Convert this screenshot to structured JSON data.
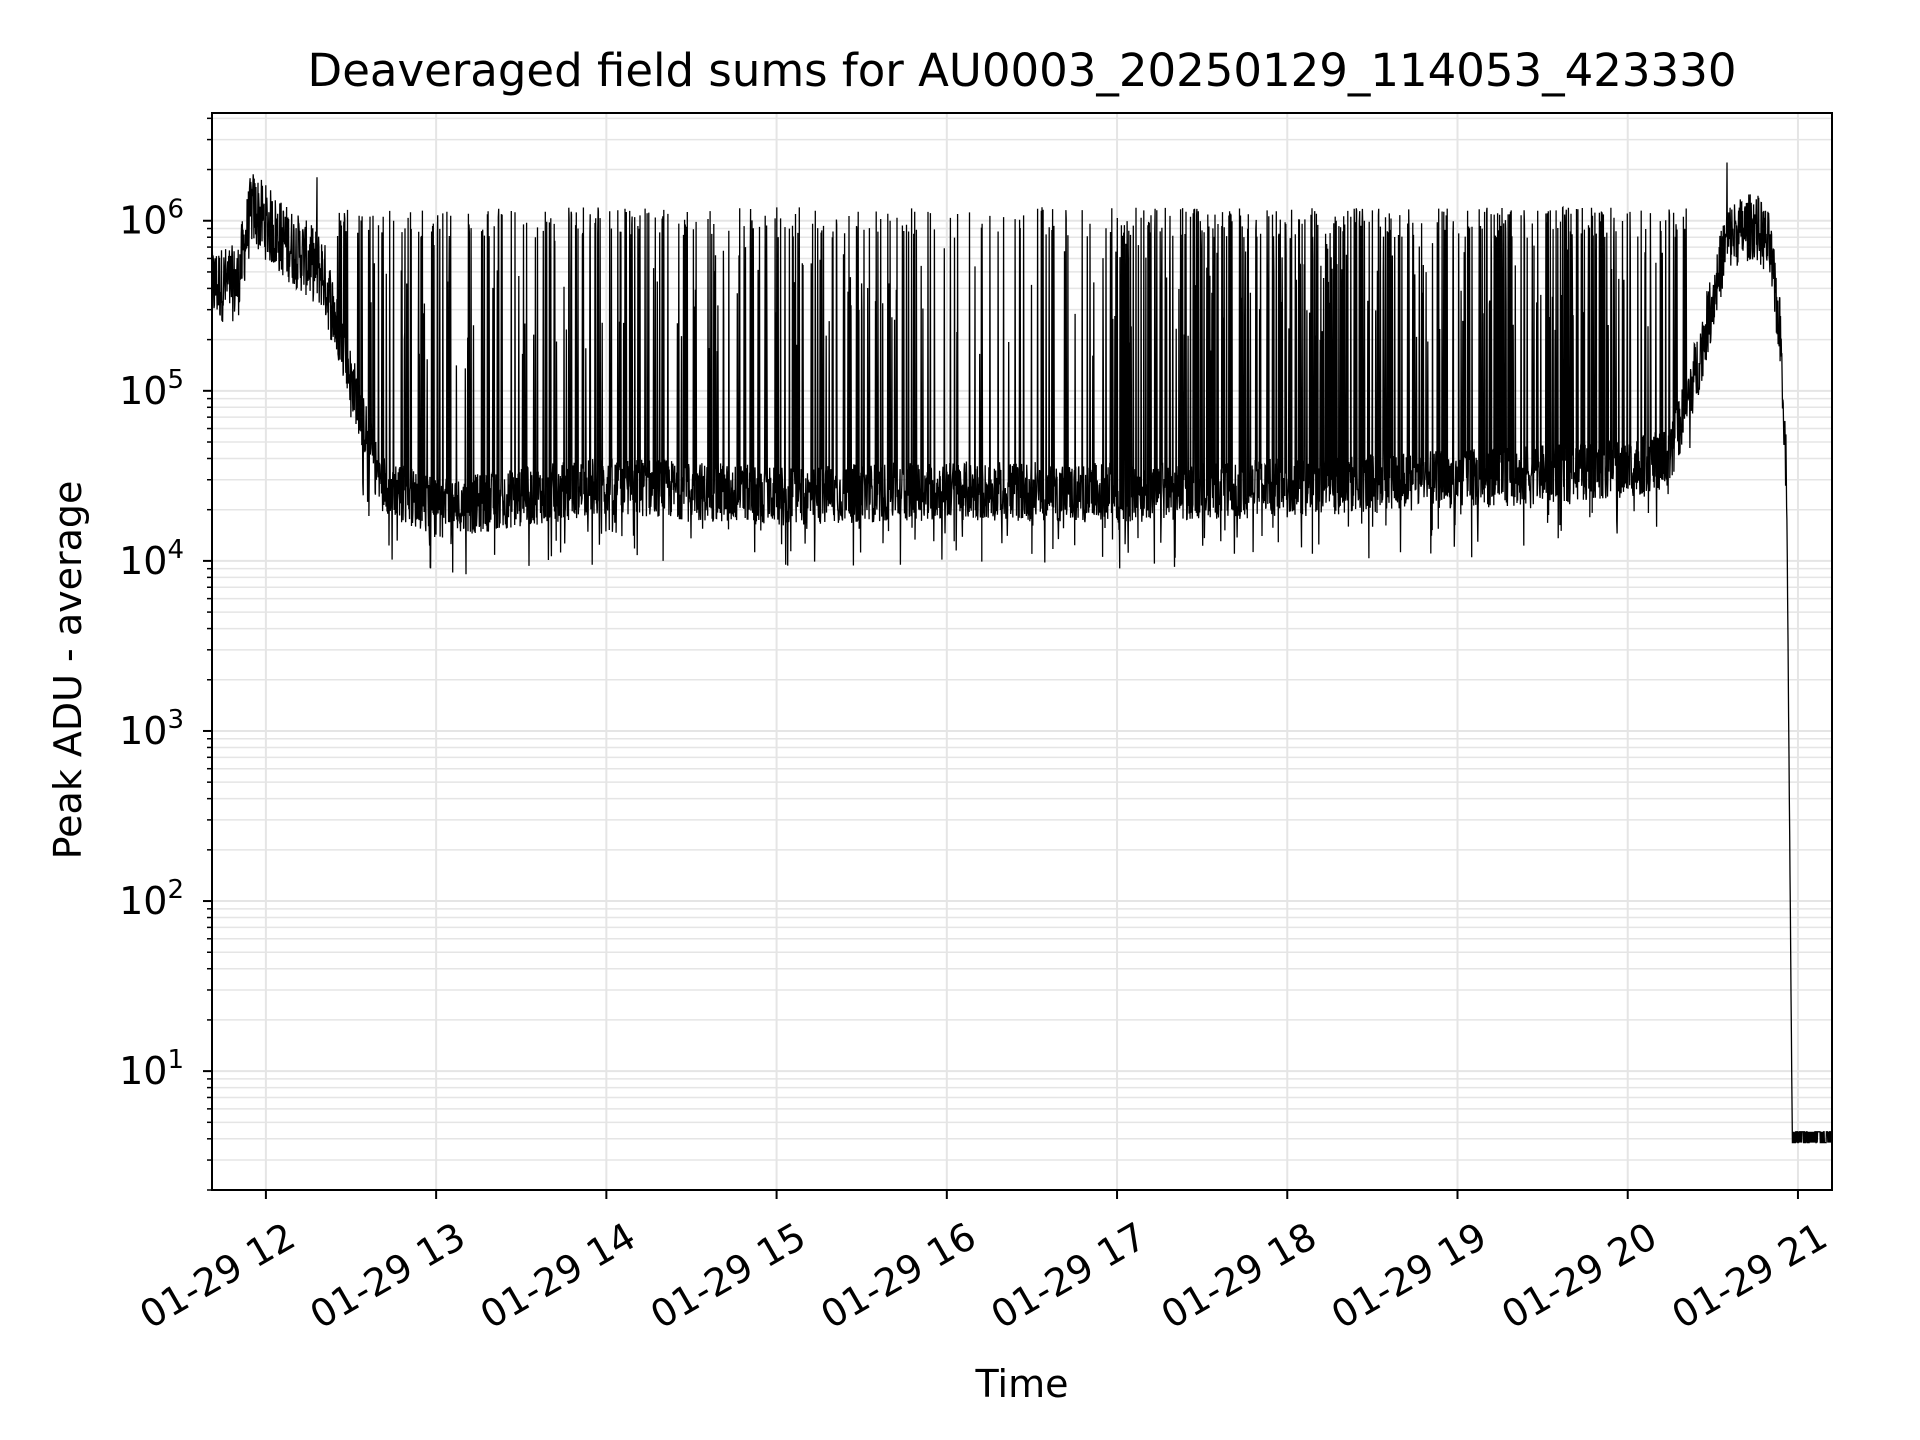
{
  "chart_data": {
    "type": "line",
    "title": "Deaveraged field sums for AU0003_20250129_114053_423330",
    "xlabel": "Time",
    "ylabel": "Peak ADU - average",
    "yscale": "log",
    "grid": "on (major and minor)",
    "legend": "none",
    "line_color": "#000000",
    "grid_color": "#e5e5e5",
    "xlim": [
      "2025-01-29 11:41",
      "2025-01-29 21:12"
    ],
    "ylim": [
      2,
      4300000
    ],
    "x_ticks": [
      {
        "label": "01-29 12",
        "time": "2025-01-29 12:00"
      },
      {
        "label": "01-29 13",
        "time": "2025-01-29 13:00"
      },
      {
        "label": "01-29 14",
        "time": "2025-01-29 14:00"
      },
      {
        "label": "01-29 15",
        "time": "2025-01-29 15:00"
      },
      {
        "label": "01-29 16",
        "time": "2025-01-29 16:00"
      },
      {
        "label": "01-29 17",
        "time": "2025-01-29 17:00"
      },
      {
        "label": "01-29 18",
        "time": "2025-01-29 18:00"
      },
      {
        "label": "01-29 19",
        "time": "2025-01-29 19:00"
      },
      {
        "label": "01-29 20",
        "time": "2025-01-29 20:00"
      },
      {
        "label": "01-29 21",
        "time": "2025-01-29 21:00"
      }
    ],
    "y_ticks": [
      {
        "base": "10",
        "exp": "1",
        "value": 10
      },
      {
        "base": "10",
        "exp": "2",
        "value": 100
      },
      {
        "base": "10",
        "exp": "3",
        "value": 1000
      },
      {
        "base": "10",
        "exp": "4",
        "value": 10000
      },
      {
        "base": "10",
        "exp": "5",
        "value": 100000
      },
      {
        "base": "10",
        "exp": "6",
        "value": 1000000
      }
    ],
    "series": [
      {
        "baseline": [
          {
            "x": "2025-01-29 11:41",
            "y": 420000
          },
          {
            "x": "2025-01-29 11:50",
            "y": 430000
          },
          {
            "x": "2025-01-29 11:55",
            "y": 1200000
          },
          {
            "x": "2025-01-29 12:05",
            "y": 800000
          },
          {
            "x": "2025-01-29 12:20",
            "y": 500000
          },
          {
            "x": "2025-01-29 12:30",
            "y": 120000
          },
          {
            "x": "2025-01-29 12:40",
            "y": 30000
          },
          {
            "x": "2025-01-29 13:00",
            "y": 20000
          },
          {
            "x": "2025-01-29 14:00",
            "y": 28000
          },
          {
            "x": "2025-01-29 15:00",
            "y": 24000
          },
          {
            "x": "2025-01-29 16:00",
            "y": 26000
          },
          {
            "x": "2025-01-29 17:00",
            "y": 25000
          },
          {
            "x": "2025-01-29 18:00",
            "y": 27000
          },
          {
            "x": "2025-01-29 19:00",
            "y": 30000
          },
          {
            "x": "2025-01-29 20:00",
            "y": 35000
          },
          {
            "x": "2025-01-29 20:15",
            "y": 40000
          },
          {
            "x": "2025-01-29 20:25",
            "y": 150000
          },
          {
            "x": "2025-01-29 20:35",
            "y": 800000
          },
          {
            "x": "2025-01-29 20:45",
            "y": 950000
          },
          {
            "x": "2025-01-29 20:50",
            "y": 700000
          },
          {
            "x": "2025-01-29 20:54",
            "y": 200000
          },
          {
            "x": "2025-01-29 20:56",
            "y": 30000
          },
          {
            "x": "2025-01-29 20:58",
            "y": 4
          },
          {
            "x": "2025-01-29 21:12",
            "y": 4
          }
        ],
        "spike_peaks": [
          {
            "x": "2025-01-29 12:18",
            "y": 1800000
          },
          {
            "x": "2025-01-29 12:45",
            "y": 1000000
          },
          {
            "x": "2025-01-29 13:35",
            "y": 800000
          },
          {
            "x": "2025-01-29 13:50",
            "y": 900000
          },
          {
            "x": "2025-01-29 14:10",
            "y": 1050000
          },
          {
            "x": "2025-01-29 15:40",
            "y": 1000000
          },
          {
            "x": "2025-01-29 16:20",
            "y": 1050000
          },
          {
            "x": "2025-01-29 17:40",
            "y": 1100000
          },
          {
            "x": "2025-01-29 18:30",
            "y": 1150000
          },
          {
            "x": "2025-01-29 19:40",
            "y": 1100000
          },
          {
            "x": "2025-01-29 20:35",
            "y": 2200000
          }
        ],
        "spike_troughs": [
          {
            "x": "2025-01-29 13:55",
            "y": 9500
          },
          {
            "x": "2025-01-29 14:20",
            "y": 10000
          },
          {
            "x": "2025-01-29 16:30",
            "y": 11000
          },
          {
            "x": "2025-01-29 18:05",
            "y": 12000
          },
          {
            "x": "2025-01-29 19:05",
            "y": 10500
          }
        ]
      }
    ]
  }
}
